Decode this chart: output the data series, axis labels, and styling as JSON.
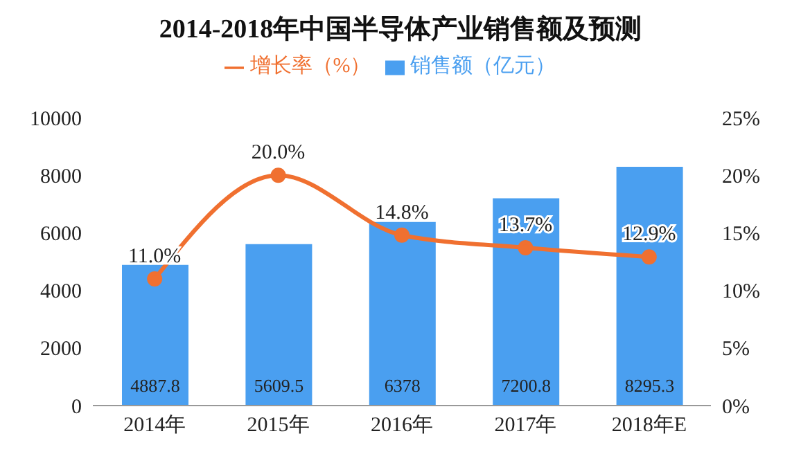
{
  "chart_data": {
    "type": "bar",
    "title": "2014-2018年中国半导体产业销售额及预测",
    "categories": [
      "2014年",
      "2015年",
      "2016年",
      "2017年",
      "2018年E"
    ],
    "series": [
      {
        "name": "销售额（亿元）",
        "color": "#4a9ff0",
        "values": [
          4887.8,
          5609.5,
          6378,
          7200.8,
          8295.3
        ]
      },
      {
        "name": "增长率（%）",
        "type": "line",
        "axis": "y2",
        "color": "#f07030",
        "values": [
          11.0,
          20.0,
          14.8,
          13.7,
          12.9
        ],
        "value_labels": [
          "11.0%",
          "20.0%",
          "14.8%",
          "13.7%",
          "12.9%"
        ]
      }
    ],
    "ylim": [
      0,
      10000
    ],
    "yticks": [
      0,
      2000,
      4000,
      6000,
      8000,
      10000
    ],
    "y2lim": [
      0,
      25
    ],
    "y2ticks": [
      {
        "value": 0,
        "label": "0%"
      },
      {
        "value": 5,
        "label": "5%"
      },
      {
        "value": 10,
        "label": "10%"
      },
      {
        "value": 15,
        "label": "15%"
      },
      {
        "value": 20,
        "label": "20%"
      },
      {
        "value": 25,
        "label": "25%"
      }
    ],
    "data_labels": true,
    "legend": "top",
    "marker": "circle",
    "line_style": "solid"
  }
}
